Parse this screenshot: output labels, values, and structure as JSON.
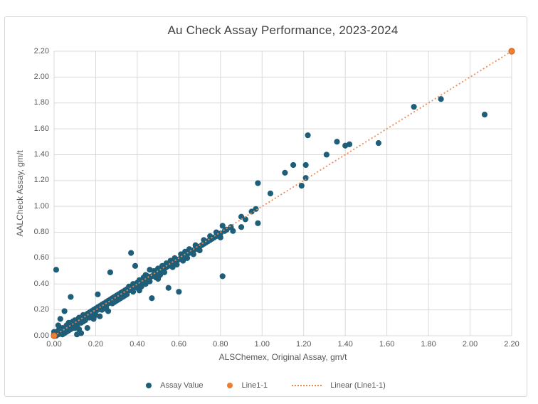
{
  "window": {
    "background": "#ffffff",
    "frame_border": "#d7d7d7"
  },
  "chart_data": {
    "type": "scatter",
    "title": "Au Check Assay Performance, 2023-2024",
    "xlabel": "ALSChemex, Original Assay, gm/t",
    "ylabel": "AALCheck Assay, gm/t",
    "xlim": [
      0,
      2.2
    ],
    "ylim": [
      0,
      2.2
    ],
    "grid": true,
    "gridline_color": "#d9d9d9",
    "tick_color": "#595959",
    "legend_position": "bottom",
    "x_tick_labels": [
      "0.00",
      "0.20",
      "0.40",
      "0.60",
      "0.80",
      "1.00",
      "1.20",
      "1.40",
      "1.60",
      "1.80",
      "2.00",
      "2.20"
    ],
    "y_tick_labels": [
      "0.00",
      "0.20",
      "0.40",
      "0.60",
      "0.80",
      "1.00",
      "1.20",
      "1.40",
      "1.60",
      "1.80",
      "2.00",
      "2.20"
    ],
    "series": [
      {
        "name": "Assay Value",
        "kind": "scatter",
        "color": "#1e5e78",
        "points": [
          [
            0.0,
            0.01
          ],
          [
            0.0,
            0.03
          ],
          [
            0.01,
            0.0
          ],
          [
            0.01,
            0.01
          ],
          [
            0.01,
            0.02
          ],
          [
            0.01,
            0.51
          ],
          [
            0.02,
            0.01
          ],
          [
            0.02,
            0.02
          ],
          [
            0.02,
            0.04
          ],
          [
            0.02,
            0.08
          ],
          [
            0.03,
            0.02
          ],
          [
            0.03,
            0.03
          ],
          [
            0.03,
            0.05
          ],
          [
            0.03,
            0.13
          ],
          [
            0.04,
            0.03
          ],
          [
            0.04,
            0.04
          ],
          [
            0.04,
            0.06
          ],
          [
            0.04,
            0.01
          ],
          [
            0.05,
            0.04
          ],
          [
            0.05,
            0.05
          ],
          [
            0.05,
            0.02
          ],
          [
            0.05,
            0.19
          ],
          [
            0.06,
            0.05
          ],
          [
            0.06,
            0.06
          ],
          [
            0.06,
            0.08
          ],
          [
            0.06,
            0.03
          ],
          [
            0.07,
            0.06
          ],
          [
            0.07,
            0.07
          ],
          [
            0.07,
            0.04
          ],
          [
            0.07,
            0.1
          ],
          [
            0.08,
            0.07
          ],
          [
            0.08,
            0.08
          ],
          [
            0.08,
            0.05
          ],
          [
            0.08,
            0.3
          ],
          [
            0.09,
            0.08
          ],
          [
            0.09,
            0.09
          ],
          [
            0.09,
            0.11
          ],
          [
            0.09,
            0.06
          ],
          [
            0.1,
            0.09
          ],
          [
            0.1,
            0.1
          ],
          [
            0.1,
            0.12
          ],
          [
            0.1,
            0.06
          ],
          [
            0.11,
            0.1
          ],
          [
            0.11,
            0.11
          ],
          [
            0.11,
            0.08
          ],
          [
            0.11,
            0.01
          ],
          [
            0.12,
            0.11
          ],
          [
            0.12,
            0.12
          ],
          [
            0.12,
            0.14
          ],
          [
            0.12,
            0.05
          ],
          [
            0.13,
            0.12
          ],
          [
            0.13,
            0.13
          ],
          [
            0.13,
            0.1
          ],
          [
            0.13,
            0.02
          ],
          [
            0.14,
            0.13
          ],
          [
            0.14,
            0.14
          ],
          [
            0.14,
            0.16
          ],
          [
            0.14,
            0.11
          ],
          [
            0.15,
            0.14
          ],
          [
            0.15,
            0.15
          ],
          [
            0.15,
            0.12
          ],
          [
            0.16,
            0.15
          ],
          [
            0.16,
            0.17
          ],
          [
            0.16,
            0.06
          ],
          [
            0.17,
            0.16
          ],
          [
            0.17,
            0.18
          ],
          [
            0.17,
            0.14
          ],
          [
            0.18,
            0.17
          ],
          [
            0.18,
            0.19
          ],
          [
            0.18,
            0.15
          ],
          [
            0.19,
            0.18
          ],
          [
            0.19,
            0.2
          ],
          [
            0.19,
            0.13
          ],
          [
            0.2,
            0.19
          ],
          [
            0.2,
            0.21
          ],
          [
            0.2,
            0.16
          ],
          [
            0.21,
            0.2
          ],
          [
            0.21,
            0.22
          ],
          [
            0.21,
            0.32
          ],
          [
            0.22,
            0.21
          ],
          [
            0.22,
            0.23
          ],
          [
            0.22,
            0.15
          ],
          [
            0.23,
            0.22
          ],
          [
            0.23,
            0.24
          ],
          [
            0.23,
            0.2
          ],
          [
            0.24,
            0.23
          ],
          [
            0.24,
            0.25
          ],
          [
            0.24,
            0.21
          ],
          [
            0.25,
            0.24
          ],
          [
            0.25,
            0.26
          ],
          [
            0.25,
            0.22
          ],
          [
            0.26,
            0.25
          ],
          [
            0.26,
            0.27
          ],
          [
            0.26,
            0.19
          ],
          [
            0.27,
            0.26
          ],
          [
            0.27,
            0.28
          ],
          [
            0.27,
            0.49
          ],
          [
            0.28,
            0.27
          ],
          [
            0.28,
            0.29
          ],
          [
            0.28,
            0.25
          ],
          [
            0.29,
            0.28
          ],
          [
            0.29,
            0.3
          ],
          [
            0.29,
            0.26
          ],
          [
            0.3,
            0.29
          ],
          [
            0.3,
            0.31
          ],
          [
            0.3,
            0.27
          ],
          [
            0.31,
            0.3
          ],
          [
            0.31,
            0.32
          ],
          [
            0.31,
            0.28
          ],
          [
            0.32,
            0.31
          ],
          [
            0.32,
            0.33
          ],
          [
            0.32,
            0.29
          ],
          [
            0.33,
            0.32
          ],
          [
            0.33,
            0.34
          ],
          [
            0.33,
            0.3
          ],
          [
            0.34,
            0.33
          ],
          [
            0.34,
            0.35
          ],
          [
            0.34,
            0.31
          ],
          [
            0.35,
            0.34
          ],
          [
            0.35,
            0.36
          ],
          [
            0.35,
            0.32
          ],
          [
            0.36,
            0.35
          ],
          [
            0.36,
            0.38
          ],
          [
            0.37,
            0.36
          ],
          [
            0.37,
            0.64
          ],
          [
            0.38,
            0.37
          ],
          [
            0.38,
            0.4
          ],
          [
            0.38,
            0.34
          ],
          [
            0.39,
            0.38
          ],
          [
            0.39,
            0.54
          ],
          [
            0.4,
            0.39
          ],
          [
            0.4,
            0.41
          ],
          [
            0.4,
            0.37
          ],
          [
            0.41,
            0.4
          ],
          [
            0.41,
            0.43
          ],
          [
            0.41,
            0.35
          ],
          [
            0.42,
            0.41
          ],
          [
            0.42,
            0.38
          ],
          [
            0.43,
            0.42
          ],
          [
            0.43,
            0.45
          ],
          [
            0.44,
            0.43
          ],
          [
            0.44,
            0.4
          ],
          [
            0.44,
            0.47
          ],
          [
            0.45,
            0.44
          ],
          [
            0.45,
            0.46
          ],
          [
            0.46,
            0.45
          ],
          [
            0.46,
            0.42
          ],
          [
            0.46,
            0.51
          ],
          [
            0.47,
            0.46
          ],
          [
            0.47,
            0.29
          ],
          [
            0.48,
            0.47
          ],
          [
            0.48,
            0.5
          ],
          [
            0.49,
            0.48
          ],
          [
            0.49,
            0.45
          ],
          [
            0.5,
            0.49
          ],
          [
            0.5,
            0.52
          ],
          [
            0.5,
            0.44
          ],
          [
            0.51,
            0.5
          ],
          [
            0.51,
            0.47
          ],
          [
            0.52,
            0.51
          ],
          [
            0.52,
            0.54
          ],
          [
            0.53,
            0.52
          ],
          [
            0.53,
            0.49
          ],
          [
            0.54,
            0.53
          ],
          [
            0.54,
            0.56
          ],
          [
            0.55,
            0.54
          ],
          [
            0.55,
            0.37
          ],
          [
            0.56,
            0.55
          ],
          [
            0.56,
            0.58
          ],
          [
            0.57,
            0.56
          ],
          [
            0.57,
            0.53
          ],
          [
            0.58,
            0.57
          ],
          [
            0.58,
            0.6
          ],
          [
            0.59,
            0.58
          ],
          [
            0.59,
            0.55
          ],
          [
            0.6,
            0.59
          ],
          [
            0.6,
            0.34
          ],
          [
            0.61,
            0.6
          ],
          [
            0.61,
            0.63
          ],
          [
            0.62,
            0.61
          ],
          [
            0.62,
            0.58
          ],
          [
            0.63,
            0.62
          ],
          [
            0.63,
            0.65
          ],
          [
            0.64,
            0.63
          ],
          [
            0.64,
            0.6
          ],
          [
            0.65,
            0.64
          ],
          [
            0.65,
            0.67
          ],
          [
            0.66,
            0.65
          ],
          [
            0.67,
            0.66
          ],
          [
            0.67,
            0.63
          ],
          [
            0.68,
            0.67
          ],
          [
            0.68,
            0.7
          ],
          [
            0.69,
            0.68
          ],
          [
            0.7,
            0.69
          ],
          [
            0.7,
            0.66
          ],
          [
            0.71,
            0.7
          ],
          [
            0.72,
            0.71
          ],
          [
            0.72,
            0.74
          ],
          [
            0.73,
            0.72
          ],
          [
            0.74,
            0.73
          ],
          [
            0.75,
            0.74
          ],
          [
            0.75,
            0.77
          ],
          [
            0.76,
            0.75
          ],
          [
            0.77,
            0.76
          ],
          [
            0.78,
            0.77
          ],
          [
            0.78,
            0.8
          ],
          [
            0.79,
            0.78
          ],
          [
            0.8,
            0.79
          ],
          [
            0.8,
            0.76
          ],
          [
            0.81,
            0.85
          ],
          [
            0.81,
            0.46
          ],
          [
            0.82,
            0.81
          ],
          [
            0.83,
            0.82
          ],
          [
            0.85,
            0.84
          ],
          [
            0.86,
            0.81
          ],
          [
            0.9,
            0.92
          ],
          [
            0.9,
            0.84
          ],
          [
            0.92,
            0.9
          ],
          [
            0.95,
            0.96
          ],
          [
            0.97,
            0.98
          ],
          [
            0.98,
            0.87
          ],
          [
            0.98,
            1.18
          ],
          [
            1.04,
            1.1
          ],
          [
            1.11,
            1.26
          ],
          [
            1.15,
            1.32
          ],
          [
            1.19,
            1.16
          ],
          [
            1.21,
            1.22
          ],
          [
            1.21,
            1.32
          ],
          [
            1.22,
            1.55
          ],
          [
            1.31,
            1.4
          ],
          [
            1.36,
            1.5
          ],
          [
            1.4,
            1.47
          ],
          [
            1.42,
            1.48
          ],
          [
            1.56,
            1.49
          ],
          [
            1.73,
            1.77
          ],
          [
            1.86,
            1.83
          ],
          [
            2.07,
            1.71
          ]
        ]
      },
      {
        "name": "Line1-1",
        "kind": "scatter",
        "color": "#ed7d31",
        "edge_color": "#c55a11",
        "points": [
          [
            0.0,
            0.0
          ],
          [
            2.2,
            2.2
          ]
        ]
      },
      {
        "name": "Linear (Line1-1)",
        "kind": "line",
        "style": "dotted",
        "color": "#ed8a54",
        "points": [
          [
            0.0,
            0.0
          ],
          [
            2.2,
            2.2
          ]
        ]
      }
    ]
  }
}
